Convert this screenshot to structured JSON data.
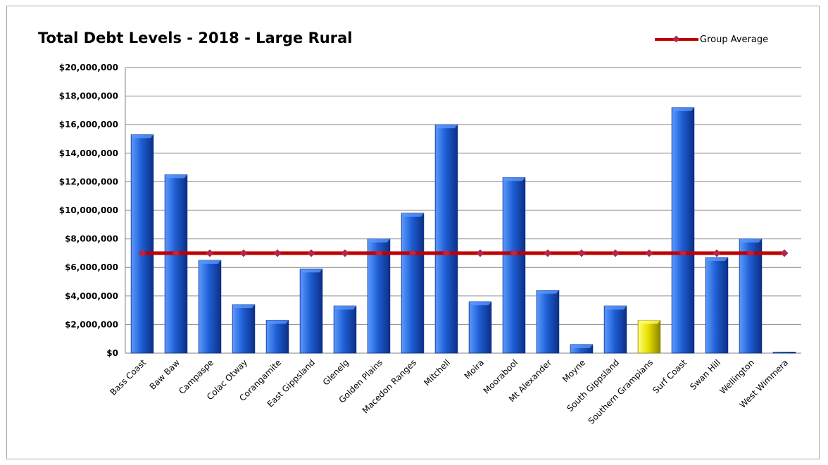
{
  "chart_data": {
    "type": "bar",
    "title": "Total Debt Levels - 2018 - Large Rural",
    "xlabel": "",
    "ylabel": "",
    "ylim": [
      0,
      20000000
    ],
    "y_ticks": [
      "$0",
      "$2,000,000",
      "$4,000,000",
      "$6,000,000",
      "$8,000,000",
      "$10,000,000",
      "$12,000,000",
      "$14,000,000",
      "$16,000,000",
      "$18,000,000",
      "$20,000,000"
    ],
    "grid": true,
    "legend_position": "top-right",
    "categories": [
      "Bass Coast",
      "Baw Baw",
      "Campaspe",
      "Colac Otway",
      "Corangamite",
      "East Gippsland",
      "Glenelg",
      "Golden Plains",
      "Macedon Ranges",
      "Mitchell",
      "Moira",
      "Moorabool",
      "Mt Alexander",
      "Moyne",
      "South Gippsland",
      "Southern Grampians",
      "Surf Coast",
      "Swan Hill",
      "Wellington",
      "West Wimmera"
    ],
    "values": [
      15300000,
      12500000,
      6500000,
      3400000,
      2300000,
      5900000,
      3300000,
      8000000,
      9800000,
      16000000,
      3600000,
      12300000,
      4400000,
      600000,
      3300000,
      2300000,
      17200000,
      6700000,
      8000000,
      50000
    ],
    "highlight_category": "Southern Grampians",
    "series": [
      {
        "name": "Group Average",
        "type": "line",
        "value": 7000000
      }
    ],
    "colors": {
      "bar": "#1f5fd6",
      "bar_dark": "#0b2f86",
      "bar_light": "#5d9bff",
      "highlight": "#e8e000",
      "highlight_dark": "#8a8400",
      "highlight_light": "#ffff7a",
      "average_line": "#c00000",
      "average_marker": "#b0284a",
      "grid": "#808080"
    }
  }
}
